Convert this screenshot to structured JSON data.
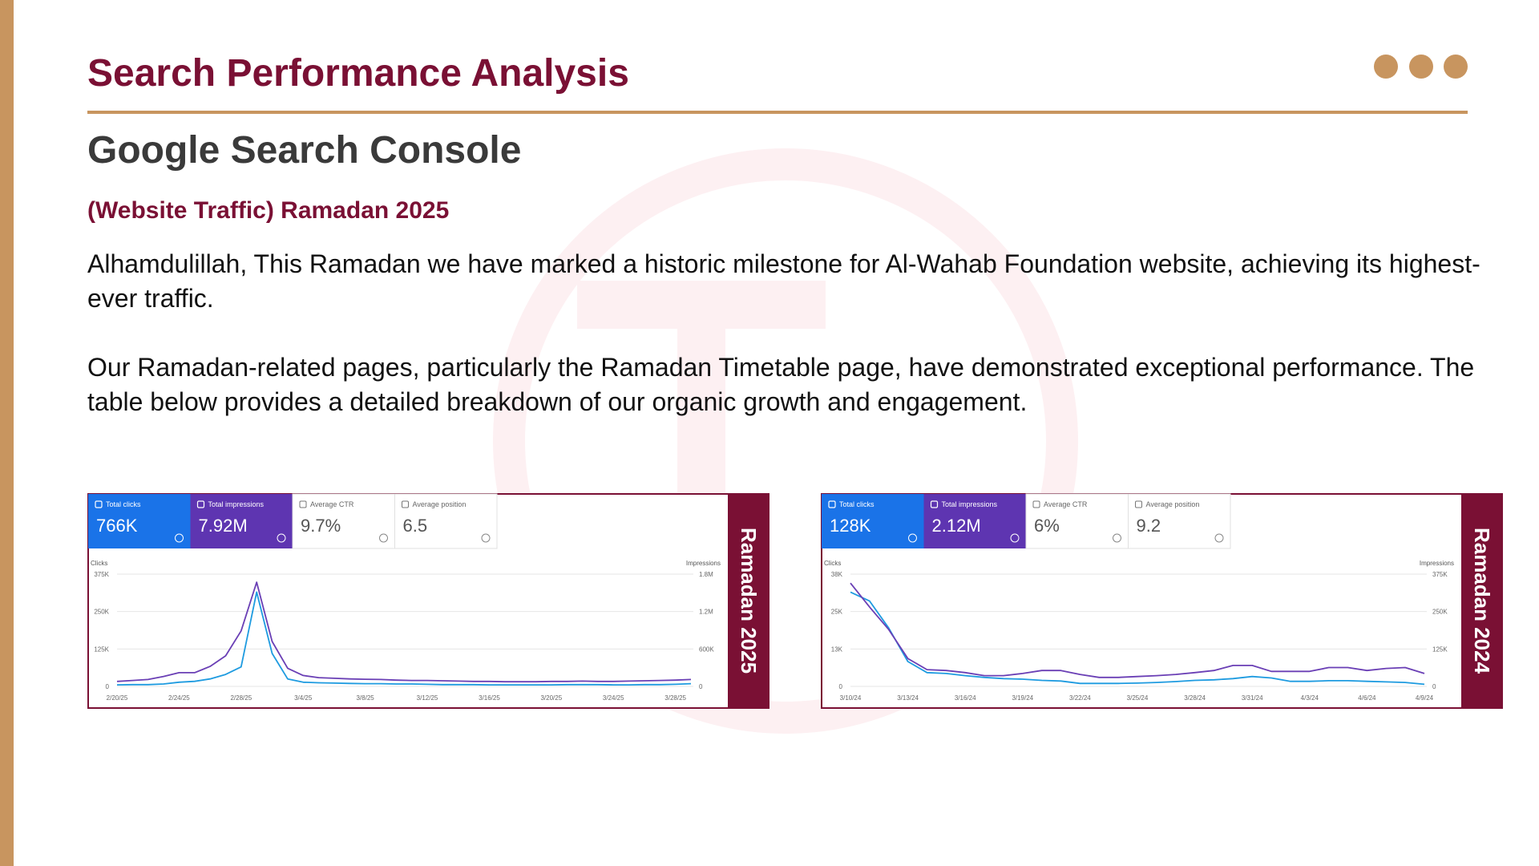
{
  "slide": {
    "title": "Search Performance Analysis",
    "heading": "Google Search Console",
    "subheading": "(Website Traffic) Ramadan 2025",
    "paragraphs": [
      "Alhamdulillah, This Ramadan we have marked a historic milestone for Al-Wahab Foundation website, achieving its highest-ever traffic.",
      "Our Ramadan-related pages, particularly the Ramadan Timetable page, have demonstrated exceptional performance. The table below provides a detailed breakdown of our organic growth and engagement."
    ]
  },
  "chart_data": [
    {
      "type": "line",
      "label": "Ramadan 2025",
      "y_label": "Clicks",
      "y2_label": "Impressions",
      "categories": [
        "2/20/25",
        null,
        null,
        null,
        "2/24/25",
        null,
        null,
        null,
        "2/28/25",
        null,
        null,
        null,
        "3/4/25",
        null,
        null,
        null,
        "3/8/25",
        null,
        null,
        null,
        "3/12/25",
        null,
        null,
        null,
        "3/16/25",
        null,
        null,
        null,
        "3/20/25",
        null,
        null,
        null,
        "3/24/25",
        null,
        null,
        null,
        "3/28/25",
        null
      ],
      "ylim": [
        0,
        375000
      ],
      "yticks": [
        0,
        {
          "value": 125000,
          "label": "125K"
        },
        {
          "value": 250000,
          "label": "250K"
        },
        {
          "value": 375000,
          "label": "375K"
        }
      ],
      "y2lim": [
        0,
        1800000
      ],
      "y2ticks": [
        0,
        {
          "value": 600000,
          "label": "600K"
        },
        {
          "value": 1200000,
          "label": "1.2M"
        },
        {
          "value": 1800000,
          "label": "1.8M"
        }
      ],
      "grid": true,
      "series": [
        {
          "name": "Total clicks",
          "total": "766K",
          "color": "#1a73e8",
          "line_color": "#1e9be0",
          "values": [
            5000,
            6000,
            6000,
            8000,
            14000,
            17000,
            25000,
            40000,
            65000,
            315000,
            110000,
            25000,
            14000,
            12000,
            11000,
            10000,
            9000,
            9000,
            8000,
            8000,
            7000,
            6000,
            6000,
            6000,
            5000,
            5000,
            5000,
            5000,
            5000,
            6000,
            6000,
            6000,
            5000,
            5000,
            6000,
            6000,
            7000,
            9000
          ]
        },
        {
          "name": "Total impressions",
          "total": "7.92M",
          "color": "#5e35b1",
          "line_color": "#6a3fb5",
          "axis": "y2",
          "values": [
            80000,
            95000,
            110000,
            160000,
            220000,
            220000,
            320000,
            490000,
            890000,
            1670000,
            720000,
            290000,
            175000,
            140000,
            130000,
            120000,
            115000,
            110000,
            100000,
            95000,
            95000,
            90000,
            85000,
            80000,
            80000,
            75000,
            75000,
            75000,
            80000,
            80000,
            85000,
            80000,
            80000,
            85000,
            90000,
            95000,
            100000,
            110000
          ]
        }
      ],
      "metrics": [
        {
          "name": "Average CTR",
          "value": "9.7%"
        },
        {
          "name": "Average position",
          "value": "6.5"
        }
      ]
    },
    {
      "type": "line",
      "label": "Ramadan 2024",
      "y_label": "Clicks",
      "y2_label": "Impressions",
      "categories": [
        "3/10/24",
        null,
        null,
        "3/13/24",
        null,
        null,
        "3/16/24",
        null,
        null,
        "3/19/24",
        null,
        null,
        "3/22/24",
        null,
        null,
        "3/25/24",
        null,
        null,
        "3/28/24",
        null,
        null,
        "3/31/24",
        null,
        null,
        "4/3/24",
        null,
        null,
        "4/6/24",
        null,
        null,
        "4/9/24"
      ],
      "ylim": [
        0,
        37500
      ],
      "yticks": [
        0,
        {
          "value": 12500,
          "label": "13K"
        },
        {
          "value": 25000,
          "label": "25K"
        },
        {
          "value": 37500,
          "label": "38K"
        }
      ],
      "y2lim": [
        0,
        375000
      ],
      "y2ticks": [
        0,
        {
          "value": 125000,
          "label": "125K"
        },
        {
          "value": 250000,
          "label": "250K"
        },
        {
          "value": 375000,
          "label": "375K"
        }
      ],
      "grid": true,
      "series": [
        {
          "name": "Total clicks",
          "total": "128K",
          "color": "#1a73e8",
          "line_color": "#1e9be0",
          "values": [
            31500,
            28500,
            19500,
            8300,
            4600,
            4300,
            3600,
            3000,
            2600,
            2400,
            2000,
            1800,
            1000,
            1000,
            1000,
            1100,
            1300,
            1600,
            2000,
            2200,
            2600,
            3300,
            2800,
            1700,
            1700,
            1900,
            1900,
            1700,
            1500,
            1300,
            700
          ]
        },
        {
          "name": "Total impressions",
          "total": "2.12M",
          "color": "#5e35b1",
          "line_color": "#6a3fb5",
          "axis": "y2",
          "values": [
            345000,
            265000,
            190000,
            93000,
            56000,
            53000,
            46000,
            36000,
            36000,
            43000,
            53000,
            53000,
            40000,
            30000,
            30000,
            33000,
            36000,
            40000,
            46000,
            53000,
            70000,
            70000,
            50000,
            50000,
            50000,
            63000,
            63000,
            53000,
            60000,
            63000,
            43000
          ]
        }
      ],
      "metrics": [
        {
          "name": "Average CTR",
          "value": "6%"
        },
        {
          "name": "Average position",
          "value": "9.2"
        }
      ]
    }
  ]
}
